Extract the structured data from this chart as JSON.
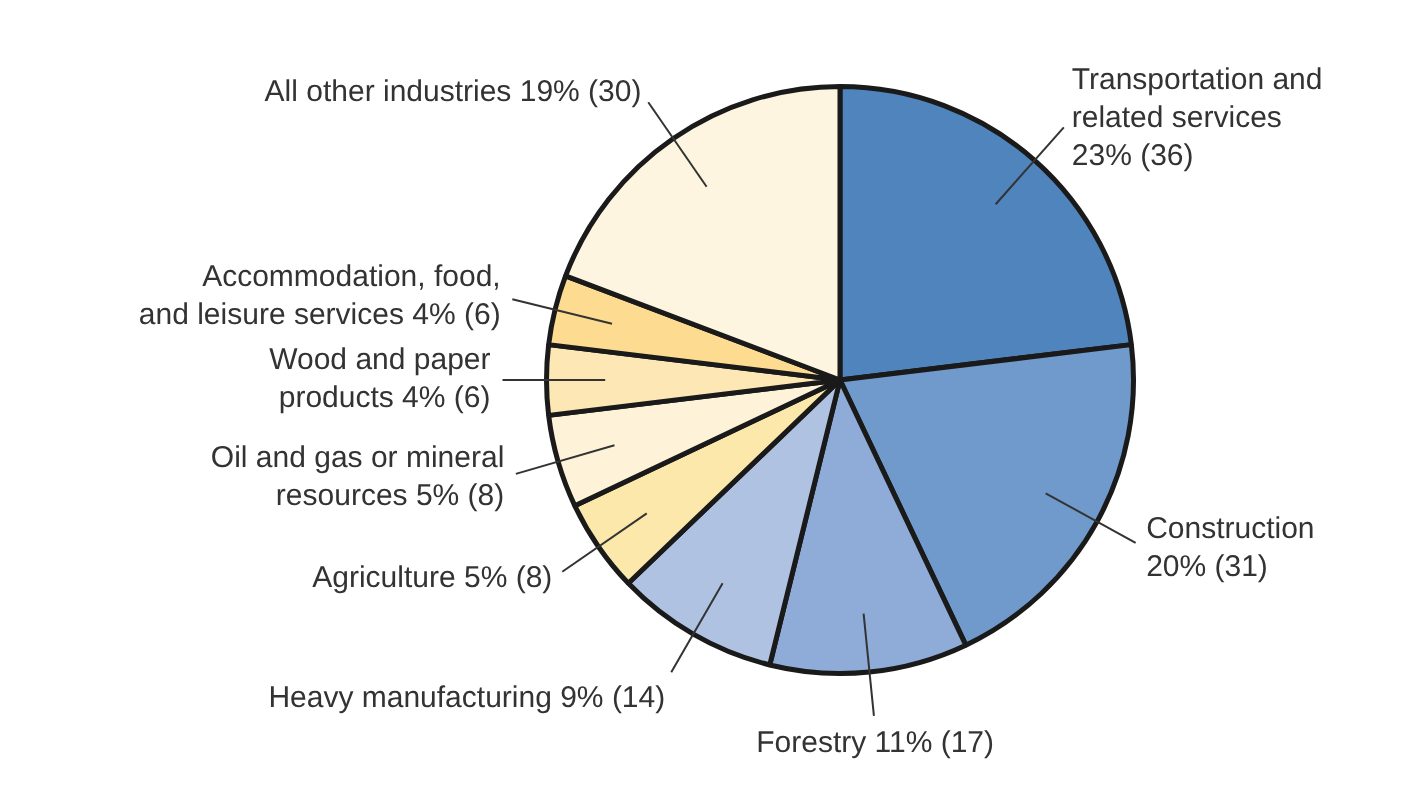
{
  "chart_data": {
    "type": "pie",
    "categories": [
      "Transportation and related services",
      "Construction",
      "Forestry",
      "Heavy manufacturing",
      "Agriculture",
      "Oil and gas or mineral resources",
      "Wood and paper products",
      "Accommodation, food, and leisure services",
      "All other industries"
    ],
    "values": [
      36,
      31,
      17,
      14,
      8,
      8,
      6,
      6,
      30
    ],
    "value_labels": [
      "23% (36)",
      "20% (31)",
      "11% (17)",
      "9% (14)",
      "5% (8)",
      "5% (8)",
      "4% (6)",
      "4% (6)",
      "19% (30)"
    ],
    "colors": [
      "#4f84bd",
      "#6f9acb",
      "#8eacd7",
      "#b0c2e2",
      "#fde8ab",
      "#fef3d8",
      "#fde7b5",
      "#fddc92",
      "#fdf5df"
    ],
    "legend": false
  }
}
